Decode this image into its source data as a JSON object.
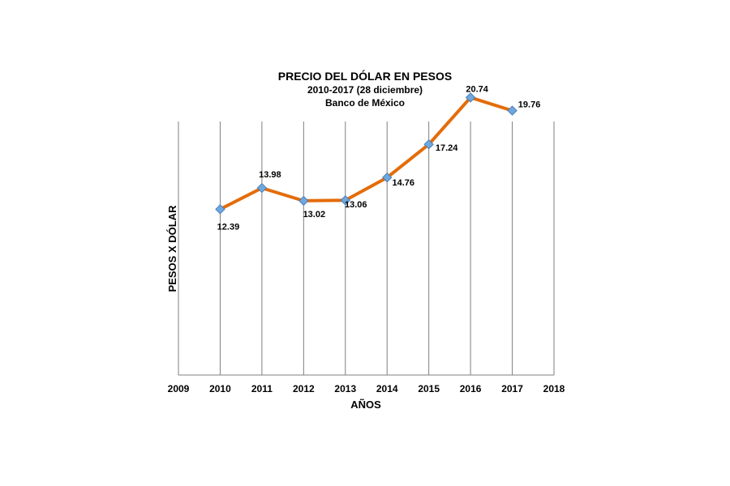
{
  "chart_data": {
    "type": "line",
    "title": "PRECIO DEL DÓLAR EN PESOS",
    "subtitle": "2010-2017  (28 diciembre)",
    "source": "Banco de México",
    "xlabel": "AÑOS",
    "ylabel": "PESOS X DÓLAR",
    "x_ticks": [
      "2009",
      "2010",
      "2011",
      "2012",
      "2013",
      "2014",
      "2015",
      "2016",
      "2017",
      "2018"
    ],
    "xlim": [
      2009,
      2018
    ],
    "ylim": [
      0,
      25
    ],
    "grid": "vertical",
    "legend": "none",
    "series": [
      {
        "x": [
          2010,
          2011,
          2012,
          2013,
          2014,
          2015,
          2016,
          2017
        ],
        "values": [
          12.39,
          13.98,
          13.02,
          13.06,
          14.76,
          17.24,
          20.74,
          19.76
        ],
        "labels": [
          "12.39",
          "13.98",
          "13.02",
          "13.06",
          "14.76",
          "17.24",
          "20.74",
          "19.76"
        ],
        "line_color": "#E36C0A",
        "marker_color": "#6FA8DC"
      }
    ]
  }
}
